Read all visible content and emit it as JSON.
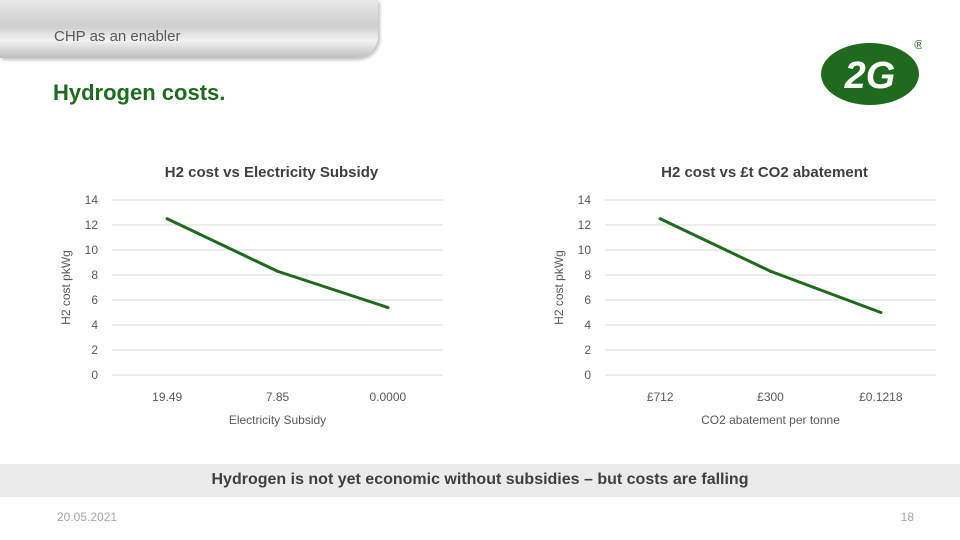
{
  "header": {
    "section_label": "CHP as an enabler",
    "title": "Hydrogen costs."
  },
  "logo": {
    "text": "2G",
    "registered_mark": "®",
    "color": "#1e6b1e"
  },
  "colors": {
    "accent": "#1e6b1e",
    "banner_bg": "#ebebeb",
    "line": "#1e6b1e"
  },
  "chart_data": [
    {
      "type": "line",
      "title": "H2 cost vs Electricity Subsidy",
      "xlabel": "Electricity Subsidy",
      "ylabel": "H2 cost pkWg",
      "categories": [
        "19.49",
        "7.85",
        "0.0000"
      ],
      "series": [
        {
          "values": [
            12.5,
            8.3,
            5.4
          ]
        }
      ],
      "ylim": [
        0,
        14
      ],
      "yticks": [
        "0",
        "2",
        "4",
        "6",
        "8",
        "10",
        "12",
        "14"
      ],
      "grid": true,
      "legend": "none"
    },
    {
      "type": "line",
      "title": "H2 cost vs £t CO2 abatement",
      "xlabel": "CO2 abatement per tonne",
      "ylabel": "H2 cost pkWg",
      "categories": [
        "£712",
        "£300",
        "£0.1218"
      ],
      "series": [
        {
          "values": [
            12.5,
            8.3,
            5.0
          ]
        }
      ],
      "ylim": [
        0,
        14
      ],
      "yticks": [
        "0",
        "2",
        "4",
        "6",
        "8",
        "10",
        "12",
        "14"
      ],
      "grid": true,
      "legend": "none"
    }
  ],
  "footer": {
    "banner": "Hydrogen is not yet economic without subsidies – but costs are falling",
    "date": "20.05.2021",
    "page": "18"
  }
}
